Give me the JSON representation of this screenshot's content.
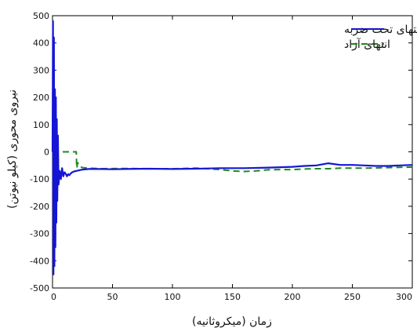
{
  "chart_data": {
    "type": "line",
    "title": "",
    "xlabel": "زمان (میکروثانیه)",
    "ylabel": "نیروی محوری (کیلو نیوتن)",
    "xlim": [
      0,
      300
    ],
    "ylim": [
      -500,
      500
    ],
    "xticks": [
      0,
      50,
      100,
      150,
      200,
      250,
      300
    ],
    "yticks": [
      -500,
      -400,
      -300,
      -200,
      -100,
      0,
      100,
      200,
      300,
      400,
      500
    ],
    "grid": false,
    "legend_position": "top-right",
    "series": [
      {
        "name": "انتهای تحت ضربه",
        "color": "#1515d6",
        "style": "solid",
        "x": [
          0,
          0.4,
          0.8,
          1.2,
          1.6,
          2.0,
          2.4,
          2.8,
          3.2,
          3.6,
          4.0,
          4.5,
          5.0,
          6,
          7,
          8,
          9,
          10,
          11,
          12,
          13,
          14,
          15,
          16,
          18,
          20,
          22,
          25,
          30,
          40,
          50,
          60,
          80,
          100,
          120,
          140,
          160,
          180,
          200,
          210,
          220,
          230,
          240,
          250,
          260,
          270,
          280,
          290,
          300
        ],
        "y": [
          0,
          480,
          -450,
          420,
          -420,
          230,
          -350,
          200,
          -260,
          120,
          -180,
          60,
          -120,
          -70,
          -100,
          -60,
          -90,
          -75,
          -80,
          -90,
          -82,
          -86,
          -80,
          -76,
          -72,
          -70,
          -68,
          -65,
          -63,
          -63,
          -64,
          -63,
          -62,
          -63,
          -62,
          -60,
          -60,
          -58,
          -55,
          -52,
          -50,
          -42,
          -48,
          -48,
          -50,
          -52,
          -52,
          -50,
          -48
        ]
      },
      {
        "name": "انتهای آزاد",
        "color": "#1e8a1e",
        "style": "dashed",
        "x": [
          0,
          19.8,
          20.2,
          21,
          23,
          25,
          30,
          40,
          60,
          80,
          100,
          120,
          140,
          150,
          160,
          170,
          180,
          190,
          200,
          210,
          220,
          230,
          240,
          260,
          280,
          300
        ],
        "y": [
          0,
          0,
          -60,
          -40,
          -55,
          -58,
          -60,
          -62,
          -61,
          -62,
          -62,
          -60,
          -65,
          -70,
          -72,
          -70,
          -66,
          -65,
          -65,
          -63,
          -62,
          -62,
          -60,
          -60,
          -58,
          -56
        ]
      }
    ]
  }
}
